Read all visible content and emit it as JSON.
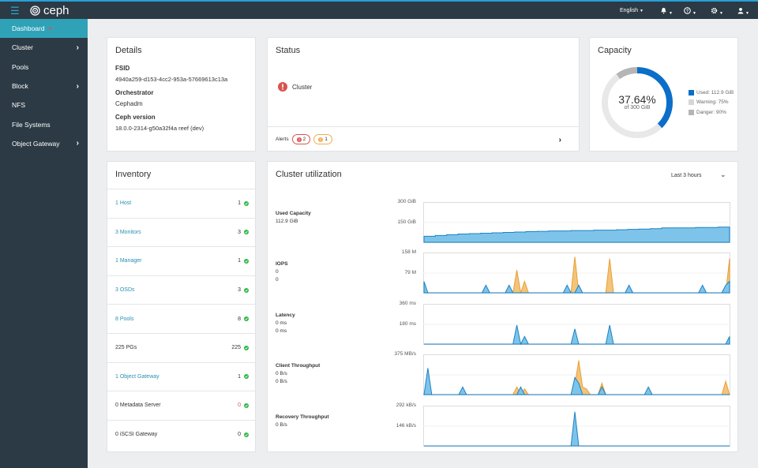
{
  "brand": {
    "name": "ceph"
  },
  "topbar": {
    "language": "English",
    "icons": [
      "hamburger-icon",
      "bell-icon",
      "help-icon",
      "gear-icon",
      "user-icon"
    ]
  },
  "sidebar": {
    "items": [
      {
        "label": "Dashboard",
        "active": true,
        "has_children": false
      },
      {
        "label": "Cluster",
        "has_children": true
      },
      {
        "label": "Pools",
        "has_children": false
      },
      {
        "label": "Block",
        "has_children": true
      },
      {
        "label": "NFS",
        "has_children": false
      },
      {
        "label": "File Systems",
        "has_children": false
      },
      {
        "label": "Object Gateway",
        "has_children": true
      }
    ]
  },
  "details": {
    "title": "Details",
    "fsid_label": "FSID",
    "fsid_value": "4940a259-d153-4cc2-953a-57669613c13a",
    "orchestrator_label": "Orchestrator",
    "orchestrator_value": "Cephadm",
    "version_label": "Ceph version",
    "version_value": "18.0.0-2314-g50a32f4a reef (dev)"
  },
  "status": {
    "title": "Status",
    "cluster_label": "Cluster",
    "alerts_label": "Alerts",
    "alerts_critical": "2",
    "alerts_warning": "1",
    "colors": {
      "critical": "#d9534f",
      "warning": "#f0ad4e"
    }
  },
  "capacity": {
    "title": "Capacity",
    "percent": "37.64%",
    "of_total": "of 300 GiB",
    "used_fraction": 0.3764,
    "warning_fraction": 0.75,
    "danger_fraction": 0.9,
    "legend": [
      {
        "label": "Used: 112.9 GiB",
        "color": "#0b6ec9"
      },
      {
        "label": "Warning: 75%",
        "color": "#d6d6d6"
      },
      {
        "label": "Danger: 90%",
        "color": "#b5b5b5"
      }
    ]
  },
  "inventory": {
    "title": "Inventory",
    "rows": [
      {
        "label": "1 Host",
        "count": "1",
        "link": true,
        "status": "ok"
      },
      {
        "label": "3 Monitors",
        "count": "3",
        "link": true,
        "status": "ok"
      },
      {
        "label": "1 Manager",
        "count": "1",
        "link": true,
        "status": "ok"
      },
      {
        "label": "3 OSDs",
        "count": "3",
        "link": true,
        "status": "ok"
      },
      {
        "label": "8 Pools",
        "count": "8",
        "link": true,
        "status": "ok"
      },
      {
        "label": "225 PGs",
        "count": "225",
        "link": false,
        "status": "ok"
      },
      {
        "label": "1 Object Gateway",
        "count": "1",
        "link": true,
        "status": "ok"
      },
      {
        "label": "0 Metadata Server",
        "count": "0",
        "link": false,
        "status": "error"
      },
      {
        "label": "0 iSCSI Gateway",
        "count": "0",
        "link": false,
        "status": "ok"
      }
    ]
  },
  "utilization": {
    "title": "Cluster utilization",
    "range": "Last 3 hours",
    "colors": {
      "primary": "#1c82c4",
      "primary_fill": "#7ec4ea",
      "secondary": "#e8a033",
      "secondary_fill": "#f3c47c"
    },
    "charts": [
      {
        "name": "used-capacity",
        "label": "Used Capacity",
        "values": [
          "112.9 GiB"
        ],
        "ticks": [
          "300 GiB",
          "150 GiB"
        ],
        "series": [
          {
            "kind": "primary",
            "values": [
              0.16,
              0.18,
              0.2,
              0.22,
              0.23,
              0.24,
              0.25,
              0.26,
              0.27,
              0.28,
              0.29,
              0.3,
              0.3,
              0.31,
              0.31,
              0.32,
              0.32,
              0.33,
              0.34,
              0.35,
              0.36,
              0.38,
              0.38,
              0.38,
              0.39,
              0.39,
              0.4,
              0.4
            ]
          }
        ]
      },
      {
        "name": "iops",
        "label": "IOPS",
        "values": [
          "0",
          "0"
        ],
        "ticks": [
          "158 M",
          "79 M"
        ],
        "series": [
          {
            "kind": "primary",
            "values": [
              0.3,
              0,
              0,
              0,
              0,
              0,
              0,
              0,
              0,
              0,
              0,
              0,
              0,
              0,
              0,
              0,
              0.2,
              0,
              0,
              0,
              0,
              0,
              0.2,
              0,
              0,
              0,
              0,
              0,
              0,
              0,
              0,
              0,
              0,
              0,
              0,
              0,
              0,
              0.2,
              0,
              0,
              0.2,
              0,
              0,
              0,
              0,
              0,
              0,
              0,
              0,
              0,
              0,
              0,
              0,
              0.2,
              0,
              0,
              0,
              0,
              0,
              0,
              0,
              0,
              0,
              0,
              0,
              0,
              0,
              0,
              0,
              0,
              0,
              0,
              0.2,
              0,
              0,
              0,
              0,
              0,
              0.2,
              0.3
            ]
          },
          {
            "kind": "secondary",
            "values": [
              0,
              0,
              0,
              0,
              0,
              0,
              0,
              0,
              0,
              0,
              0,
              0,
              0,
              0,
              0,
              0,
              0,
              0,
              0,
              0,
              0,
              0,
              0,
              0,
              0.6,
              0,
              0.3,
              0,
              0,
              0,
              0,
              0,
              0,
              0,
              0,
              0,
              0,
              0,
              0,
              0.95,
              0,
              0,
              0,
              0,
              0,
              0,
              0,
              0,
              0.9,
              0,
              0,
              0,
              0,
              0,
              0,
              0,
              0,
              0,
              0,
              0,
              0,
              0,
              0,
              0,
              0,
              0,
              0,
              0,
              0,
              0,
              0,
              0,
              0,
              0,
              0,
              0,
              0,
              0,
              0,
              0.9
            ]
          }
        ]
      },
      {
        "name": "latency",
        "label": "Latency",
        "values": [
          "0 ms",
          "0 ms"
        ],
        "ticks": [
          "360 ms",
          "180 ms"
        ],
        "series": [
          {
            "kind": "primary",
            "values": [
              0,
              0,
              0,
              0,
              0,
              0,
              0,
              0,
              0,
              0,
              0,
              0,
              0,
              0,
              0,
              0,
              0,
              0,
              0,
              0,
              0,
              0,
              0,
              0,
              0.5,
              0,
              0.2,
              0,
              0,
              0,
              0,
              0,
              0,
              0,
              0,
              0,
              0,
              0,
              0,
              0.4,
              0,
              0,
              0,
              0,
              0,
              0,
              0,
              0,
              0.5,
              0,
              0,
              0,
              0,
              0,
              0,
              0,
              0,
              0,
              0,
              0,
              0,
              0,
              0,
              0,
              0,
              0,
              0,
              0,
              0,
              0,
              0,
              0,
              0,
              0,
              0,
              0,
              0,
              0,
              0,
              0.2
            ]
          }
        ]
      },
      {
        "name": "client-throughput",
        "label": "Client Throughput",
        "values": [
          "0 B/s",
          "0 B/s"
        ],
        "ticks": [
          "375 MB/s"
        ],
        "series": [
          {
            "kind": "primary",
            "values": [
              0,
              0.7,
              0,
              0,
              0,
              0,
              0,
              0,
              0,
              0,
              0.2,
              0,
              0,
              0,
              0,
              0,
              0,
              0,
              0,
              0,
              0,
              0,
              0,
              0,
              0,
              0.2,
              0,
              0,
              0,
              0,
              0,
              0,
              0,
              0,
              0,
              0,
              0,
              0,
              0,
              0.45,
              0.3,
              0,
              0,
              0,
              0,
              0,
              0.2,
              0,
              0,
              0,
              0,
              0,
              0,
              0,
              0,
              0,
              0,
              0,
              0.2,
              0,
              0,
              0,
              0,
              0,
              0,
              0,
              0,
              0,
              0,
              0,
              0,
              0,
              0,
              0,
              0,
              0,
              0,
              0,
              0,
              0
            ]
          },
          {
            "kind": "secondary",
            "values": [
              0,
              0,
              0,
              0,
              0,
              0,
              0,
              0,
              0,
              0,
              0,
              0,
              0,
              0,
              0,
              0,
              0,
              0,
              0,
              0,
              0,
              0,
              0,
              0,
              0.2,
              0,
              0.15,
              0,
              0,
              0,
              0,
              0,
              0,
              0,
              0,
              0,
              0,
              0,
              0,
              0.25,
              0.9,
              0.2,
              0.15,
              0,
              0,
              0,
              0.3,
              0,
              0,
              0,
              0,
              0,
              0,
              0,
              0,
              0,
              0,
              0,
              0,
              0,
              0,
              0,
              0,
              0,
              0,
              0,
              0,
              0,
              0,
              0,
              0,
              0,
              0,
              0,
              0,
              0,
              0,
              0,
              0.35,
              0
            ]
          }
        ]
      },
      {
        "name": "recovery-throughput",
        "label": "Recovery Throughput",
        "values": [
          "0 B/s"
        ],
        "ticks": [
          "292 kB/s",
          "146 kB/s"
        ],
        "series": [
          {
            "kind": "primary",
            "values": [
              0,
              0,
              0,
              0,
              0,
              0,
              0,
              0,
              0,
              0,
              0,
              0,
              0,
              0,
              0,
              0,
              0,
              0,
              0,
              0,
              0,
              0,
              0,
              0,
              0,
              0,
              0,
              0,
              0,
              0,
              0,
              0,
              0,
              0,
              0,
              0,
              0,
              0,
              0,
              0.9,
              0,
              0,
              0,
              0,
              0,
              0,
              0,
              0,
              0,
              0,
              0,
              0,
              0,
              0,
              0,
              0,
              0,
              0,
              0,
              0,
              0,
              0,
              0,
              0,
              0,
              0,
              0,
              0,
              0,
              0,
              0,
              0,
              0,
              0,
              0,
              0,
              0,
              0,
              0,
              0
            ]
          }
        ]
      }
    ]
  }
}
